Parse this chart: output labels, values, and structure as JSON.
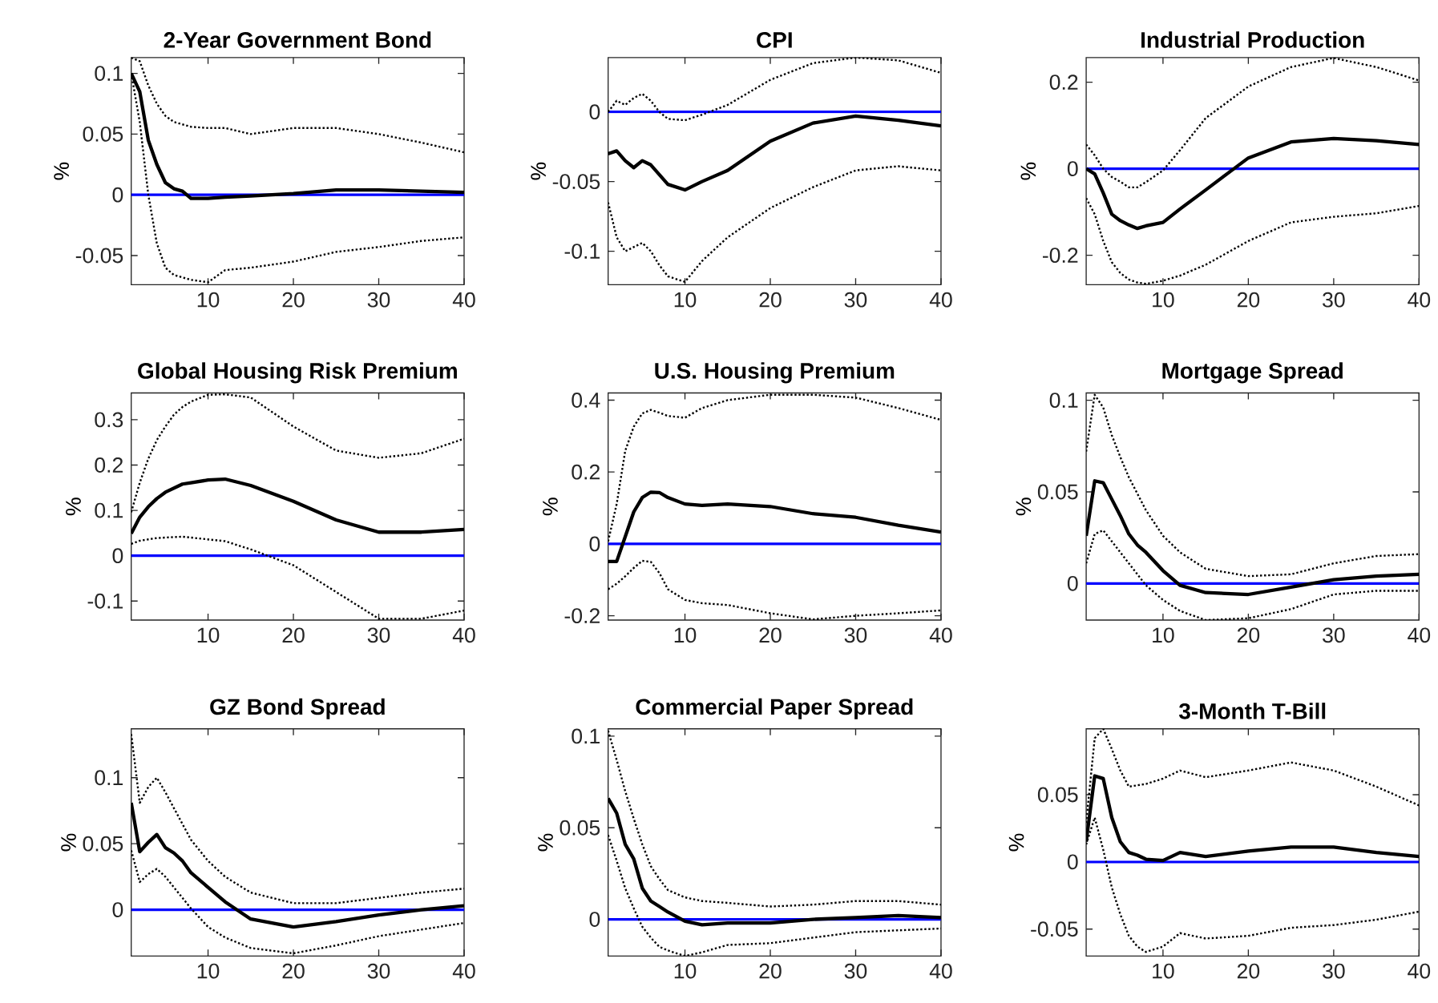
{
  "chart_data": [
    {
      "type": "line",
      "title": "2-Year Government Bond",
      "ylabel": "%",
      "x": [
        1,
        2,
        3,
        4,
        5,
        6,
        7,
        8,
        10,
        12,
        15,
        20,
        25,
        30,
        35,
        40
      ],
      "xlim": [
        1,
        40
      ],
      "xticks": [
        10,
        20,
        30,
        40
      ],
      "ylim": [
        -0.074,
        0.113
      ],
      "yticks": [
        -0.05,
        0,
        0.05,
        0.1
      ],
      "series": [
        {
          "color": "#000000",
          "line_style": "solid",
          "values": [
            0.1,
            0.085,
            0.045,
            0.025,
            0.01,
            0.005,
            0.003,
            -0.003,
            -0.003,
            -0.002,
            -0.001,
            0.001,
            0.004,
            0.004,
            0.003,
            0.002
          ]
        },
        {
          "color": "#000000",
          "line_style": "dotted",
          "values": [
            0.113,
            0.11,
            0.09,
            0.075,
            0.065,
            0.06,
            0.058,
            0.056,
            0.055,
            0.055,
            0.05,
            0.055,
            0.055,
            0.05,
            0.043,
            0.035
          ]
        },
        {
          "color": "#000000",
          "line_style": "dotted",
          "values": [
            0.1,
            0.06,
            0.0,
            -0.04,
            -0.06,
            -0.066,
            -0.068,
            -0.07,
            -0.072,
            -0.062,
            -0.06,
            -0.055,
            -0.047,
            -0.043,
            -0.038,
            -0.035
          ]
        }
      ],
      "ref_lines": [
        {
          "axis": "y",
          "value": 0,
          "color": "#0000ff"
        }
      ]
    },
    {
      "type": "line",
      "title": "CPI",
      "ylabel": "%",
      "x": [
        1,
        2,
        3,
        4,
        5,
        6,
        7,
        8,
        10,
        12,
        15,
        20,
        25,
        30,
        35,
        40
      ],
      "xlim": [
        1,
        40
      ],
      "xticks": [
        10,
        20,
        30,
        40
      ],
      "ylim": [
        -0.124,
        0.039
      ],
      "yticks": [
        -0.1,
        -0.05,
        0
      ],
      "series": [
        {
          "color": "#000000",
          "line_style": "solid",
          "values": [
            -0.03,
            -0.028,
            -0.035,
            -0.04,
            -0.035,
            -0.038,
            -0.045,
            -0.052,
            -0.056,
            -0.05,
            -0.042,
            -0.021,
            -0.008,
            -0.003,
            -0.006,
            -0.01
          ]
        },
        {
          "color": "#000000",
          "line_style": "dotted",
          "values": [
            0.0,
            0.008,
            0.005,
            0.01,
            0.013,
            0.008,
            0.0,
            -0.005,
            -0.006,
            -0.002,
            0.005,
            0.023,
            0.035,
            0.039,
            0.037,
            0.028
          ]
        },
        {
          "color": "#000000",
          "line_style": "dotted",
          "values": [
            -0.065,
            -0.09,
            -0.1,
            -0.097,
            -0.094,
            -0.1,
            -0.11,
            -0.118,
            -0.122,
            -0.107,
            -0.09,
            -0.069,
            -0.054,
            -0.042,
            -0.039,
            -0.042
          ]
        }
      ],
      "ref_lines": [
        {
          "axis": "y",
          "value": 0,
          "color": "#0000ff"
        }
      ]
    },
    {
      "type": "line",
      "title": "Industrial Production",
      "ylabel": "%",
      "x": [
        1,
        2,
        3,
        4,
        5,
        6,
        7,
        8,
        10,
        12,
        15,
        20,
        25,
        30,
        35,
        40
      ],
      "xlim": [
        1,
        40
      ],
      "xticks": [
        10,
        20,
        30,
        40
      ],
      "ylim": [
        -0.268,
        0.257
      ],
      "yticks": [
        -0.2,
        0,
        0.2
      ],
      "series": [
        {
          "color": "#000000",
          "line_style": "solid",
          "values": [
            0,
            -0.012,
            -0.056,
            -0.105,
            -0.12,
            -0.13,
            -0.138,
            -0.132,
            -0.124,
            -0.093,
            -0.049,
            0.025,
            0.062,
            0.07,
            0.065,
            0.056
          ]
        },
        {
          "color": "#000000",
          "line_style": "dotted",
          "values": [
            0.056,
            0.031,
            0,
            -0.019,
            -0.03,
            -0.043,
            -0.043,
            -0.031,
            -0.004,
            0.043,
            0.117,
            0.19,
            0.235,
            0.256,
            0.235,
            0.204
          ]
        },
        {
          "color": "#000000",
          "line_style": "dotted",
          "values": [
            -0.068,
            -0.105,
            -0.167,
            -0.216,
            -0.241,
            -0.256,
            -0.263,
            -0.266,
            -0.259,
            -0.247,
            -0.222,
            -0.167,
            -0.124,
            -0.111,
            -0.103,
            -0.086
          ]
        }
      ],
      "ref_lines": [
        {
          "axis": "y",
          "value": 0,
          "color": "#0000ff"
        }
      ]
    },
    {
      "type": "line",
      "title": "Global Housing Risk Premium",
      "ylabel": "%",
      "x": [
        1,
        2,
        3,
        4,
        5,
        6,
        7,
        8,
        10,
        12,
        15,
        20,
        25,
        30,
        35,
        40
      ],
      "xlim": [
        1,
        40
      ],
      "xticks": [
        10,
        20,
        30,
        40
      ],
      "ylim": [
        -0.142,
        0.359
      ],
      "yticks": [
        -0.1,
        0,
        0.1,
        0.2,
        0.3
      ],
      "series": [
        {
          "color": "#000000",
          "line_style": "solid",
          "values": [
            0.049,
            0.085,
            0.108,
            0.126,
            0.14,
            0.149,
            0.158,
            0.161,
            0.167,
            0.169,
            0.155,
            0.12,
            0.079,
            0.052,
            0.052,
            0.058
          ]
        },
        {
          "color": "#000000",
          "line_style": "dotted",
          "values": [
            0.096,
            0.161,
            0.214,
            0.255,
            0.285,
            0.311,
            0.328,
            0.34,
            0.355,
            0.356,
            0.349,
            0.285,
            0.232,
            0.216,
            0.226,
            0.258
          ]
        },
        {
          "color": "#000000",
          "line_style": "dotted",
          "values": [
            0.026,
            0.033,
            0.036,
            0.039,
            0.04,
            0.041,
            0.042,
            0.04,
            0.036,
            0.032,
            0.014,
            -0.021,
            -0.08,
            -0.139,
            -0.139,
            -0.121
          ]
        }
      ],
      "ref_lines": [
        {
          "axis": "y",
          "value": 0,
          "color": "#0000ff"
        }
      ]
    },
    {
      "type": "line",
      "title": "U.S. Housing Premium",
      "ylabel": "%",
      "x": [
        1,
        2,
        3,
        4,
        5,
        6,
        7,
        8,
        10,
        12,
        15,
        20,
        25,
        30,
        35,
        40
      ],
      "xlim": [
        1,
        40
      ],
      "xticks": [
        10,
        20,
        30,
        40
      ],
      "ylim": [
        -0.212,
        0.42
      ],
      "yticks": [
        -0.2,
        0,
        0.2,
        0.4
      ],
      "series": [
        {
          "color": "#000000",
          "line_style": "solid",
          "values": [
            -0.049,
            -0.049,
            0.02,
            0.089,
            0.129,
            0.144,
            0.143,
            0.129,
            0.111,
            0.107,
            0.111,
            0.104,
            0.084,
            0.074,
            0.052,
            0.033
          ]
        },
        {
          "color": "#000000",
          "line_style": "dotted",
          "values": [
            0.007,
            0.111,
            0.259,
            0.326,
            0.363,
            0.373,
            0.365,
            0.356,
            0.351,
            0.378,
            0.4,
            0.415,
            0.415,
            0.407,
            0.378,
            0.345
          ]
        },
        {
          "color": "#000000",
          "line_style": "dotted",
          "values": [
            -0.126,
            -0.111,
            -0.09,
            -0.067,
            -0.047,
            -0.05,
            -0.081,
            -0.126,
            -0.156,
            -0.165,
            -0.17,
            -0.193,
            -0.21,
            -0.2,
            -0.193,
            -0.185
          ]
        }
      ],
      "ref_lines": [
        {
          "axis": "y",
          "value": 0,
          "color": "#0000ff"
        }
      ]
    },
    {
      "type": "line",
      "title": "Mortgage Spread",
      "ylabel": "%",
      "x": [
        1,
        2,
        3,
        4,
        5,
        6,
        7,
        8,
        10,
        12,
        15,
        20,
        25,
        30,
        35,
        40
      ],
      "xlim": [
        1,
        40
      ],
      "xticks": [
        10,
        20,
        30,
        40
      ],
      "ylim": [
        -0.02,
        0.104
      ],
      "yticks": [
        0,
        0.05,
        0.1
      ],
      "series": [
        {
          "color": "#000000",
          "line_style": "solid",
          "values": [
            0.026,
            0.056,
            0.055,
            0.046,
            0.037,
            0.027,
            0.021,
            0.017,
            0.007,
            -0.001,
            -0.005,
            -0.006,
            -0.002,
            0.002,
            0.004,
            0.005
          ]
        },
        {
          "color": "#000000",
          "line_style": "dotted",
          "values": [
            0.072,
            0.103,
            0.096,
            0.081,
            0.069,
            0.058,
            0.049,
            0.04,
            0.026,
            0.017,
            0.008,
            0.004,
            0.005,
            0.011,
            0.015,
            0.016
          ]
        },
        {
          "color": "#000000",
          "line_style": "dotted",
          "values": [
            0.011,
            0.027,
            0.029,
            0.023,
            0.017,
            0.011,
            0.005,
            -0.001,
            -0.009,
            -0.015,
            -0.02,
            -0.019,
            -0.014,
            -0.006,
            -0.004,
            -0.004
          ]
        }
      ],
      "ref_lines": [
        {
          "axis": "y",
          "value": 0,
          "color": "#0000ff"
        }
      ]
    },
    {
      "type": "line",
      "title": "GZ Bond Spread",
      "ylabel": "%",
      "x": [
        1,
        2,
        3,
        4,
        5,
        6,
        7,
        8,
        10,
        12,
        15,
        20,
        25,
        30,
        35,
        40
      ],
      "xlim": [
        1,
        40
      ],
      "xticks": [
        10,
        20,
        30,
        40
      ],
      "ylim": [
        -0.035,
        0.137
      ],
      "yticks": [
        0,
        0.05,
        0.1
      ],
      "series": [
        {
          "color": "#000000",
          "line_style": "solid",
          "values": [
            0.081,
            0.044,
            0.051,
            0.057,
            0.047,
            0.043,
            0.037,
            0.028,
            0.017,
            0.006,
            -0.007,
            -0.013,
            -0.009,
            -0.004,
            0.0,
            0.003
          ]
        },
        {
          "color": "#000000",
          "line_style": "dotted",
          "values": [
            0.133,
            0.081,
            0.093,
            0.1,
            0.089,
            0.077,
            0.065,
            0.053,
            0.037,
            0.025,
            0.013,
            0.005,
            0.005,
            0.009,
            0.013,
            0.016
          ]
        },
        {
          "color": "#000000",
          "line_style": "dotted",
          "values": [
            0.045,
            0.021,
            0.027,
            0.031,
            0.025,
            0.017,
            0.009,
            0.001,
            -0.013,
            -0.021,
            -0.029,
            -0.033,
            -0.027,
            -0.02,
            -0.015,
            -0.01
          ]
        }
      ],
      "ref_lines": [
        {
          "axis": "y",
          "value": 0,
          "color": "#0000ff"
        }
      ]
    },
    {
      "type": "line",
      "title": "Commercial Paper Spread",
      "ylabel": "%",
      "x": [
        1,
        2,
        3,
        4,
        5,
        6,
        7,
        8,
        10,
        12,
        15,
        20,
        25,
        30,
        35,
        40
      ],
      "xlim": [
        1,
        40
      ],
      "xticks": [
        10,
        20,
        30,
        40
      ],
      "ylim": [
        -0.02,
        0.104
      ],
      "yticks": [
        0,
        0.05,
        0.1
      ],
      "series": [
        {
          "color": "#000000",
          "line_style": "solid",
          "values": [
            0.066,
            0.058,
            0.041,
            0.033,
            0.017,
            0.01,
            0.007,
            0.004,
            -0.001,
            -0.003,
            -0.002,
            -0.002,
            0.0,
            0.001,
            0.002,
            0.001
          ]
        },
        {
          "color": "#000000",
          "line_style": "dotted",
          "values": [
            0.103,
            0.087,
            0.07,
            0.055,
            0.041,
            0.029,
            0.022,
            0.016,
            0.012,
            0.01,
            0.009,
            0.007,
            0.008,
            0.01,
            0.01,
            0.008
          ]
        },
        {
          "color": "#000000",
          "line_style": "dotted",
          "values": [
            0.046,
            0.032,
            0.017,
            0.006,
            -0.004,
            -0.01,
            -0.015,
            -0.017,
            -0.02,
            -0.018,
            -0.014,
            -0.013,
            -0.01,
            -0.007,
            -0.006,
            -0.005
          ]
        }
      ],
      "ref_lines": [
        {
          "axis": "y",
          "value": 0,
          "color": "#0000ff"
        }
      ]
    },
    {
      "type": "line",
      "title": "3-Month T-Bill",
      "ylabel": "%",
      "x": [
        1,
        2,
        3,
        4,
        5,
        6,
        7,
        8,
        10,
        12,
        15,
        20,
        25,
        30,
        35,
        40
      ],
      "xlim": [
        1,
        40
      ],
      "xticks": [
        10,
        20,
        30,
        40
      ],
      "ylim": [
        -0.07,
        0.099
      ],
      "yticks": [
        -0.05,
        0,
        0.05
      ],
      "series": [
        {
          "color": "#000000",
          "line_style": "solid",
          "values": [
            0.015,
            0.064,
            0.062,
            0.033,
            0.015,
            0.007,
            0.005,
            0.002,
            0.001,
            0.007,
            0.004,
            0.008,
            0.011,
            0.011,
            0.007,
            0.004
          ]
        },
        {
          "color": "#000000",
          "line_style": "dotted",
          "values": [
            0.029,
            0.092,
            0.099,
            0.084,
            0.068,
            0.056,
            0.057,
            0.058,
            0.062,
            0.068,
            0.063,
            0.068,
            0.074,
            0.068,
            0.056,
            0.042
          ]
        },
        {
          "color": "#000000",
          "line_style": "dotted",
          "values": [
            0.013,
            0.033,
            0.009,
            -0.019,
            -0.039,
            -0.055,
            -0.063,
            -0.067,
            -0.063,
            -0.053,
            -0.057,
            -0.055,
            -0.049,
            -0.047,
            -0.043,
            -0.037
          ]
        }
      ],
      "ref_lines": [
        {
          "axis": "y",
          "value": 0,
          "color": "#0000ff"
        }
      ]
    }
  ]
}
